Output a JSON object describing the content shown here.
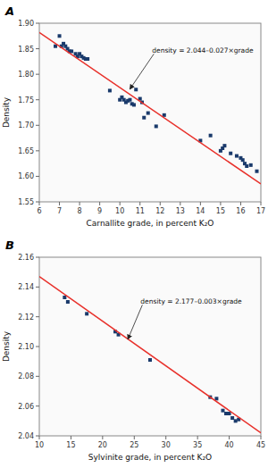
{
  "chart_data": [
    {
      "type": "scatter",
      "title": "A",
      "x_label": "Carnallite grade, in percent K₂O",
      "y_label": "Density",
      "series": [
        {
          "type": "scatter",
          "color": "#1a3a6b",
          "marker": "square",
          "x": [
            6.8,
            7.0,
            7.1,
            7.2,
            7.3,
            7.4,
            7.5,
            7.6,
            7.8,
            7.9,
            8.0,
            8.1,
            8.2,
            8.3,
            8.4,
            9.5,
            10.0,
            10.1,
            10.2,
            10.3,
            10.4,
            10.5,
            10.6,
            10.7,
            10.8,
            11.0,
            11.1,
            11.2,
            11.4,
            11.8,
            12.2,
            14.0,
            14.5,
            15.0,
            15.1,
            15.2,
            15.5,
            15.8,
            16.0,
            16.1,
            16.2,
            16.3,
            16.5,
            16.8
          ],
          "values": [
            1.855,
            1.875,
            1.855,
            1.86,
            1.855,
            1.85,
            1.845,
            1.845,
            1.84,
            1.835,
            1.84,
            1.835,
            1.832,
            1.83,
            1.83,
            1.768,
            1.75,
            1.755,
            1.75,
            1.745,
            1.748,
            1.75,
            1.742,
            1.74,
            1.77,
            1.752,
            1.745,
            1.715,
            1.724,
            1.698,
            1.72,
            1.67,
            1.68,
            1.65,
            1.655,
            1.66,
            1.645,
            1.64,
            1.636,
            1.632,
            1.625,
            1.62,
            1.622,
            1.61
          ]
        },
        {
          "type": "line",
          "color": "#e8302a",
          "x": [
            6,
            17
          ],
          "values": [
            1.882,
            1.585
          ]
        }
      ],
      "annotations": [
        {
          "text": "density = 2.044–0.027×grade",
          "x": 10.5,
          "y": 1.771,
          "text_x": 11.6,
          "text_y": 1.84
        }
      ],
      "xlim": [
        6,
        17
      ],
      "ylim": [
        1.55,
        1.9
      ],
      "xticks": [
        6,
        7,
        8,
        9,
        10,
        11,
        12,
        13,
        14,
        15,
        16,
        17
      ],
      "yticks": [
        1.55,
        {
          "value": 1.6,
          "label": "1.60"
        },
        1.65,
        {
          "value": 1.7,
          "label": "1.70"
        },
        1.75,
        {
          "value": 1.8,
          "label": "1.80"
        },
        1.85,
        {
          "value": 1.9,
          "label": "1.90"
        }
      ],
      "grid": false
    },
    {
      "type": "scatter",
      "title": "B",
      "x_label": "Sylvinite grade, in percent K₂O",
      "y_label": "Density",
      "series": [
        {
          "type": "scatter",
          "color": "#1a3a6b",
          "marker": "square",
          "x": [
            14.0,
            14.5,
            17.5,
            22.0,
            22.5,
            27.5,
            37.0,
            38.0,
            39.0,
            39.5,
            40.0,
            40.5,
            41.0,
            41.5
          ],
          "values": [
            2.133,
            2.13,
            2.122,
            2.11,
            2.108,
            2.091,
            2.066,
            2.065,
            2.057,
            2.055,
            2.055,
            2.052,
            2.05,
            2.051
          ]
        },
        {
          "type": "line",
          "color": "#e8302a",
          "x": [
            10,
            45
          ],
          "values": [
            2.147,
            2.042
          ]
        }
      ],
      "annotations": [
        {
          "text": "density = 2.177–0.003×grade",
          "x": 24.0,
          "y": 2.105,
          "text_x": 26.0,
          "text_y": 2.128
        }
      ],
      "xlim": [
        10,
        45
      ],
      "ylim": [
        2.04,
        2.16
      ],
      "xticks": [
        10,
        15,
        20,
        25,
        30,
        35,
        40,
        45
      ],
      "yticks": [
        2.04,
        2.06,
        2.08,
        {
          "value": 2.1,
          "label": "2.10"
        },
        2.12,
        2.14,
        2.16
      ],
      "grid": false
    }
  ]
}
